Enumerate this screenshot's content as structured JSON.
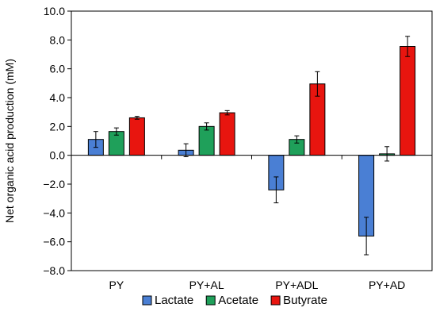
{
  "chart_data": {
    "type": "bar",
    "title": "",
    "xlabel": "",
    "ylabel": "Net organic acid production (mM)",
    "ylim": [
      -8,
      10
    ],
    "ytick_step": 2,
    "ytick_labels": [
      "−8.0",
      "−6.0",
      "−4.0",
      "−2.0",
      "0.0",
      "2.0",
      "4.0",
      "6.0",
      "8.0",
      "10.0"
    ],
    "categories": [
      "PY",
      "PY+AL",
      "PY+ADL",
      "PY+AD"
    ],
    "series": [
      {
        "name": "Lactate",
        "color": "#4a7fd4",
        "values": [
          1.1,
          0.35,
          -2.4,
          -5.6
        ],
        "errors": [
          0.55,
          0.45,
          0.9,
          1.3
        ]
      },
      {
        "name": "Acetate",
        "color": "#1fa05a",
        "values": [
          1.65,
          2.0,
          1.1,
          0.1
        ],
        "errors": [
          0.25,
          0.25,
          0.25,
          0.5
        ]
      },
      {
        "name": "Butyrate",
        "color": "#e8150f",
        "values": [
          2.6,
          2.95,
          4.95,
          7.55
        ],
        "errors": [
          0.1,
          0.15,
          0.85,
          0.7
        ]
      }
    ],
    "legend": {
      "position": "bottom"
    },
    "grid": false
  }
}
